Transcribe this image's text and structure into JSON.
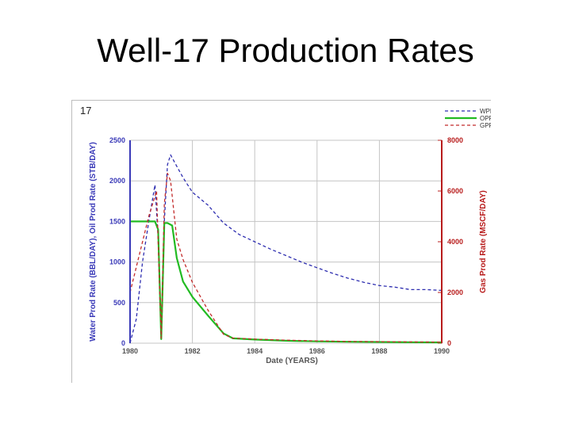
{
  "slide": {
    "title": "Well-17 Production Rates"
  },
  "chart_data": {
    "type": "line",
    "panel_label": "17",
    "xlabel": "Date (YEARS)",
    "ylabel_left": "Water Prod Rate (BBL/DAY), Oil Prod Rate (STB/DAY)",
    "ylabel_right": "Gas Prod Rate (MSCF/DAY)",
    "xlim": [
      1980,
      1990
    ],
    "ylim_left": [
      0,
      2500
    ],
    "ylim_right": [
      0,
      8000
    ],
    "x_ticks": [
      "1980",
      "1982",
      "1984",
      "1986",
      "1988",
      "1990"
    ],
    "y_ticks_left": [
      "0",
      "500",
      "1000",
      "1500",
      "2000",
      "2500"
    ],
    "y_ticks_right": [
      "0",
      "2000",
      "4000",
      "6000",
      "8000"
    ],
    "grid": true,
    "legend_position": "top-right",
    "colors": {
      "left_axis": "#3a3ab8",
      "right_axis": "#b81c1c",
      "grid": "#c4c4c4"
    },
    "series": [
      {
        "name": "WPR",
        "axis": "left",
        "color": "#2e2eb0",
        "style": "dashed",
        "points": [
          [
            1980,
            0
          ],
          [
            1980.2,
            300
          ],
          [
            1980.4,
            1000
          ],
          [
            1980.6,
            1500
          ],
          [
            1980.8,
            1950
          ],
          [
            1980.9,
            1300
          ],
          [
            1981.0,
            50
          ],
          [
            1981.1,
            1500
          ],
          [
            1981.2,
            2200
          ],
          [
            1981.3,
            2320
          ],
          [
            1981.5,
            2180
          ],
          [
            1981.7,
            2040
          ],
          [
            1982,
            1860
          ],
          [
            1982.5,
            1700
          ],
          [
            1983,
            1480
          ],
          [
            1983.5,
            1340
          ],
          [
            1984,
            1250
          ],
          [
            1984.5,
            1160
          ],
          [
            1985,
            1080
          ],
          [
            1985.5,
            1000
          ],
          [
            1986,
            930
          ],
          [
            1986.5,
            860
          ],
          [
            1987,
            800
          ],
          [
            1987.5,
            750
          ],
          [
            1988,
            710
          ],
          [
            1988.5,
            690
          ],
          [
            1989,
            660
          ],
          [
            1989.5,
            660
          ],
          [
            1990,
            650
          ]
        ]
      },
      {
        "name": "OPR",
        "axis": "left",
        "color": "#22bb22",
        "style": "solid",
        "points": [
          [
            1980,
            1500
          ],
          [
            1980.5,
            1500
          ],
          [
            1980.8,
            1500
          ],
          [
            1980.9,
            1400
          ],
          [
            1981.0,
            50
          ],
          [
            1981.1,
            1480
          ],
          [
            1981.2,
            1480
          ],
          [
            1981.35,
            1450
          ],
          [
            1981.5,
            1050
          ],
          [
            1981.7,
            760
          ],
          [
            1982,
            570
          ],
          [
            1982.5,
            340
          ],
          [
            1983,
            120
          ],
          [
            1983.3,
            60
          ],
          [
            1984,
            45
          ],
          [
            1985,
            30
          ],
          [
            1986,
            22
          ],
          [
            1987,
            18
          ],
          [
            1988,
            15
          ],
          [
            1989,
            12
          ],
          [
            1990,
            10
          ]
        ]
      },
      {
        "name": "GPR",
        "axis": "right",
        "color": "#c22a2a",
        "style": "dashed",
        "points": [
          [
            1980,
            2000
          ],
          [
            1980.3,
            3500
          ],
          [
            1980.6,
            5000
          ],
          [
            1980.85,
            6000
          ],
          [
            1981.0,
            200
          ],
          [
            1981.1,
            5500
          ],
          [
            1981.2,
            6700
          ],
          [
            1981.3,
            6400
          ],
          [
            1981.5,
            4100
          ],
          [
            1981.7,
            3300
          ],
          [
            1982,
            2400
          ],
          [
            1982.5,
            1300
          ],
          [
            1983,
            350
          ],
          [
            1983.3,
            200
          ],
          [
            1984,
            160
          ],
          [
            1985,
            120
          ],
          [
            1986,
            90
          ],
          [
            1987,
            70
          ],
          [
            1988,
            60
          ],
          [
            1989,
            50
          ],
          [
            1990,
            40
          ]
        ]
      }
    ]
  }
}
